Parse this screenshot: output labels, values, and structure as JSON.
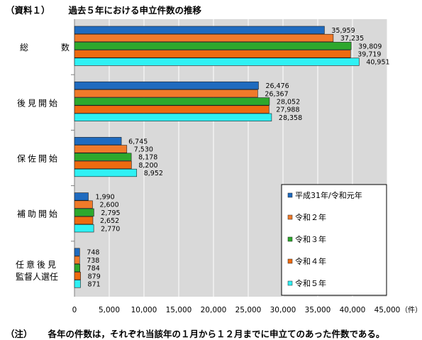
{
  "header": {
    "tag": "（資料１）",
    "title": "過去５年における申立件数の推移"
  },
  "footnote": {
    "tag": "（注）",
    "text": "各年の件数は，それぞれ当該年の１月から１２月までに申立てのあった件数である。"
  },
  "colors": {
    "plot_background": "#d9d9d9",
    "grid": "#ffffff",
    "series": [
      "#1f6bbf",
      "#f07a2a",
      "#2da82d",
      "#ee6a10",
      "#2ff1f4"
    ]
  },
  "chart_data": {
    "type": "bar",
    "orientation": "horizontal",
    "categories": [
      "総　数",
      "後見開始",
      "保佐開始",
      "補助開始",
      "任意後見監督人選任"
    ],
    "category_lines": [
      [
        "総",
        "数"
      ],
      [
        "後見開始"
      ],
      [
        "保佐開始"
      ],
      [
        "補助開始"
      ],
      [
        "任意後見",
        "監督人選任"
      ]
    ],
    "series": [
      {
        "name": "平成31年/令和元年",
        "values": [
          35959,
          26476,
          6745,
          1990,
          748
        ],
        "labels": [
          "35,959",
          "26,476",
          "6,745",
          "1,990",
          "748"
        ]
      },
      {
        "name": "令和２年",
        "values": [
          37235,
          26367,
          7530,
          2600,
          738
        ],
        "labels": [
          "37,235",
          "26,367",
          "7,530",
          "2,600",
          "738"
        ]
      },
      {
        "name": "令和３年",
        "values": [
          39809,
          28052,
          8178,
          2795,
          784
        ],
        "labels": [
          "39,809",
          "28,052",
          "8,178",
          "2,795",
          "784"
        ]
      },
      {
        "name": "令和４年",
        "values": [
          39719,
          27988,
          8200,
          2652,
          879
        ],
        "labels": [
          "39,719",
          "27,988",
          "8,200",
          "2,652",
          "879"
        ]
      },
      {
        "name": "令和５年",
        "values": [
          40951,
          28358,
          8952,
          2770,
          871
        ],
        "labels": [
          "40,951",
          "28,358",
          "8,952",
          "2,770",
          "871"
        ]
      }
    ],
    "xlim": [
      0,
      45000
    ],
    "xticks": [
      0,
      5000,
      10000,
      15000,
      20000,
      25000,
      30000,
      35000,
      40000,
      45000
    ],
    "xtick_labels": [
      "0",
      "5,000",
      "10,000",
      "15,000",
      "20,000",
      "25,000",
      "30,000",
      "35,000",
      "40,000",
      "45,000"
    ],
    "xunit": "（件）",
    "grid": true,
    "legend_position": "bottom-right, inside plot"
  }
}
